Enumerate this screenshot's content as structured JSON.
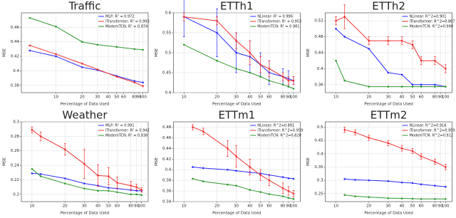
{
  "chart_data": [
    {
      "type": "line",
      "title": "Traffic",
      "xlabel": "Percentage of Data Used",
      "ylabel": "MSE",
      "xscale": "log",
      "legend": "upper right",
      "x": [
        5,
        10,
        20,
        30,
        50,
        80,
        100
      ],
      "xlim": [
        4,
        115
      ],
      "xticks": [
        10,
        20,
        30,
        40,
        50,
        60,
        80,
        90,
        100
      ],
      "ylim": [
        0.37,
        0.48
      ],
      "yticks": [
        0.38,
        0.4,
        0.42,
        0.44,
        0.46
      ],
      "series": [
        {
          "name": "MLP: R² = 0.972",
          "color": "#2b2bff",
          "values": [
            0.428,
            0.42,
            0.405,
            0.401,
            0.393,
            0.386,
            0.384
          ]
        },
        {
          "name": "iTransformer: R² = 0.993",
          "color": "#f03030",
          "values": [
            0.435,
            0.423,
            0.41,
            0.402,
            0.392,
            0.384,
            0.379
          ]
        },
        {
          "name": "ModernTCN: R² = 0.974",
          "color": "#2e9a2e",
          "values": [
            0.473,
            0.461,
            0.44,
            0.436,
            0.433,
            0.43,
            0.429
          ]
        }
      ]
    },
    {
      "type": "line",
      "title": "ETTh1",
      "xlabel": "Percentage of Data Used",
      "ylabel": "MSE",
      "xscale": "log",
      "legend": "upper right",
      "x": [
        10,
        20,
        30,
        40,
        50,
        60,
        80,
        90,
        100
      ],
      "xlim": [
        8,
        115
      ],
      "xticks": [
        10,
        20,
        30,
        40,
        50,
        60,
        80,
        90,
        100
      ],
      "ylim": [
        0.4,
        0.6
      ],
      "yticks": [
        0.4,
        0.45,
        0.5,
        0.55,
        0.6
      ],
      "series": [
        {
          "name": "NLinear: R² = 0.996",
          "color": "#2b2bff",
          "values": [
            0.59,
            0.55,
            0.5,
            0.49,
            0.47,
            0.45,
            0.44,
            0.435,
            0.43
          ],
          "errors": [
            0.05,
            0.06,
            0.05,
            0.04,
            0.03,
            0.03,
            0.02,
            0.02,
            0.01
          ]
        },
        {
          "name": "iTransformer: R² = 0.953",
          "color": "#f03030",
          "values": [
            0.59,
            0.58,
            0.53,
            0.5,
            0.47,
            0.46,
            0.44,
            0.43,
            0.43
          ],
          "errors": [
            0.01,
            0.01,
            0.02,
            0.03,
            0.02,
            0.02,
            0.01,
            0.01,
            0.01
          ]
        },
        {
          "name": "ModernTCN: R² = 0.981",
          "color": "#2e9a2e",
          "values": [
            0.52,
            0.48,
            0.46,
            0.45,
            0.44,
            0.43,
            0.42,
            0.415,
            0.41
          ]
        }
      ]
    },
    {
      "type": "line",
      "title": "ETTh2",
      "xlabel": "Percentage of Data Used",
      "ylabel": "MSE",
      "xscale": "log",
      "legend": "upper right",
      "x": [
        10,
        12,
        20,
        30,
        40,
        50,
        60,
        80,
        100
      ],
      "xlim": [
        8,
        115
      ],
      "xticks": [
        10,
        20,
        30,
        40,
        50,
        60,
        80,
        90,
        100
      ],
      "ylim": [
        0.34,
        0.54
      ],
      "yticks": [
        0.36,
        0.4,
        0.44,
        0.48,
        0.52
      ],
      "series": [
        {
          "name": "NLinear: R^2=0.901",
          "color": "#2b2bff",
          "values": [
            0.5,
            0.48,
            0.45,
            0.39,
            0.385,
            0.36,
            0.36,
            0.36,
            0.355
          ]
        },
        {
          "name": "iTransformer: R^2=0.887",
          "color": "#f03030",
          "values": [
            0.52,
            0.53,
            0.47,
            0.47,
            0.47,
            0.46,
            0.42,
            0.42,
            0.4
          ],
          "errors": [
            0.01,
            0.03,
            0.01,
            0.01,
            0.01,
            0.01,
            0.01,
            0.01,
            0.01
          ]
        },
        {
          "name": "ModernTCN: R^2=0.990",
          "color": "#2e9a2e",
          "values": [
            0.42,
            0.37,
            0.355,
            0.355,
            0.355,
            0.355,
            0.355,
            0.355,
            0.355
          ]
        }
      ]
    },
    {
      "type": "line",
      "title": "Weather",
      "xlabel": "Percentage of Data Used",
      "ylabel": "MSE",
      "xscale": "log",
      "legend": "upper right",
      "x": [
        10,
        12,
        20,
        30,
        40,
        50,
        60,
        80,
        90,
        100
      ],
      "xlim": [
        8,
        115
      ],
      "xticks": [
        10,
        20,
        30,
        40,
        50,
        60,
        80,
        90,
        100
      ],
      "ylim": [
        0.19,
        0.3
      ],
      "yticks": [
        0.2,
        0.22,
        0.24,
        0.26,
        0.28,
        0.3
      ],
      "series": [
        {
          "name": "MLP: R² = 0.991",
          "color": "#2b2bff",
          "values": [
            0.229,
            0.228,
            0.222,
            0.215,
            0.212,
            0.209,
            0.208,
            0.206,
            0.205,
            0.205
          ]
        },
        {
          "name": "iTransformer: R² = 0.942",
          "color": "#f03030",
          "values": [
            0.289,
            0.28,
            0.262,
            0.242,
            0.226,
            0.225,
            0.216,
            0.212,
            0.21,
            0.206
          ],
          "errors": [
            0.004,
            0.006,
            0.008,
            0.02,
            0.015,
            0.012,
            0.008,
            0.006,
            0.004,
            0.003
          ]
        },
        {
          "name": "ModernTCN: R² = 0.938",
          "color": "#2e9a2e",
          "values": [
            0.235,
            0.225,
            0.215,
            0.208,
            0.205,
            0.205,
            0.203,
            0.2,
            0.2,
            0.199
          ]
        }
      ]
    },
    {
      "type": "line",
      "title": "ETTm1",
      "xlabel": "Percentage of Data Used",
      "ylabel": "MSE",
      "xscale": "log",
      "legend": "upper right",
      "x": [
        12,
        15,
        25,
        30,
        40,
        50,
        60,
        80,
        90,
        100
      ],
      "xlim": [
        8,
        115
      ],
      "xticks": [
        10,
        20,
        30,
        40,
        50,
        60,
        80,
        90,
        100
      ],
      "ylim": [
        0.34,
        0.49
      ],
      "yticks": [
        0.34,
        0.36,
        0.38,
        0.4,
        0.42,
        0.44,
        0.46,
        0.48
      ],
      "series": [
        {
          "name": "NLinear: R^2=0.891",
          "color": "#2b2bff",
          "values": [
            0.405,
            0.403,
            0.4,
            0.398,
            0.395,
            0.393,
            0.39,
            0.386,
            0.384,
            0.383
          ]
        },
        {
          "name": "iTransformer: R^2=0.959",
          "color": "#f03030",
          "values": [
            0.48,
            0.472,
            0.44,
            0.425,
            0.405,
            0.39,
            0.38,
            0.365,
            0.36,
            0.355
          ],
          "errors": [
            0.005,
            0.006,
            0.015,
            0.02,
            0.015,
            0.01,
            0.01,
            0.01,
            0.008,
            0.006
          ]
        },
        {
          "name": "ModernTCN: R^2=0.828",
          "color": "#2e9a2e",
          "values": [
            0.383,
            0.378,
            0.372,
            0.37,
            0.362,
            0.358,
            0.354,
            0.35,
            0.347,
            0.345
          ]
        }
      ]
    },
    {
      "type": "line",
      "title": "ETTm2",
      "xlabel": "Percentage of Data Used",
      "ylabel": "MSE",
      "xscale": "log",
      "legend": "upper right",
      "x": [
        12,
        15,
        20,
        30,
        40,
        50,
        60,
        80,
        100
      ],
      "xlim": [
        8,
        115
      ],
      "xticks": [
        10,
        20,
        30,
        40,
        50,
        60,
        80,
        90,
        100
      ],
      "ylim": [
        0.22,
        0.52
      ],
      "yticks": [
        0.25,
        0.3,
        0.35,
        0.4,
        0.45,
        0.5
      ],
      "series": [
        {
          "name": "NLinear: R^2=0.916",
          "color": "#2b2bff",
          "values": [
            0.305,
            0.302,
            0.3,
            0.297,
            0.292,
            0.29,
            0.285,
            0.28,
            0.276
          ]
        },
        {
          "name": "iTransformer: R^2=0.959",
          "color": "#f03030",
          "values": [
            0.49,
            0.48,
            0.46,
            0.44,
            0.42,
            0.41,
            0.39,
            0.37,
            0.35
          ],
          "errors": [
            0.01,
            0.01,
            0.01,
            0.01,
            0.01,
            0.01,
            0.01,
            0.01,
            0.01
          ]
        },
        {
          "name": "ModernTCN: R^2=0.912",
          "color": "#2e9a2e",
          "values": [
            0.245,
            0.24,
            0.237,
            0.233,
            0.232,
            0.231,
            0.23,
            0.23,
            0.23
          ]
        }
      ]
    }
  ]
}
